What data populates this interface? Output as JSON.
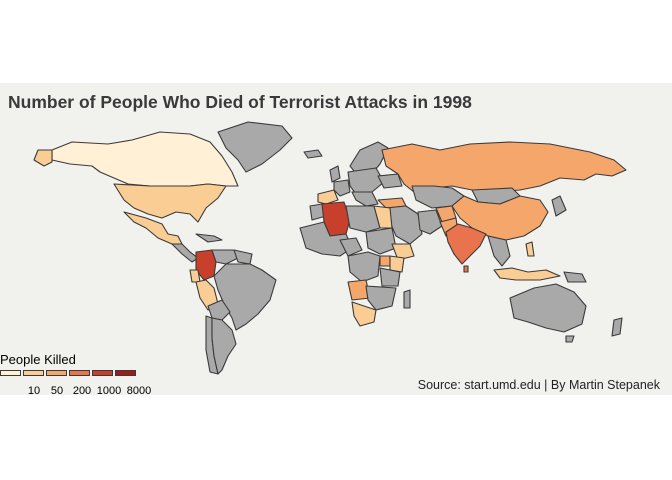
{
  "title": "Number of People Who Died of Terrorist Attacks in 1998",
  "source": "Source: start.umd.edu | By Martin Stepanek",
  "legend": {
    "title": "People Killed",
    "labels": [
      "10",
      "50",
      "200",
      "1000",
      "8000"
    ]
  },
  "colors": {
    "no_data": "#a9a9a9",
    "scale": [
      "#fff0d6",
      "#f9cd94",
      "#f5a76b",
      "#e8734d",
      "#c8402c",
      "#a11a1a"
    ],
    "border": "#3a3a3a",
    "background": "#f1f1ee"
  },
  "chart_data": {
    "type": "choropleth",
    "scale": "log",
    "legend_breaks": [
      10,
      50,
      200,
      1000,
      8000
    ],
    "regions": [
      {
        "name": "Canada",
        "bin": 0
      },
      {
        "name": "United States",
        "bin": 1
      },
      {
        "name": "Mexico",
        "bin": 1
      },
      {
        "name": "Colombia",
        "bin": 4
      },
      {
        "name": "Peru",
        "bin": 1
      },
      {
        "name": "Algeria",
        "bin": 4
      },
      {
        "name": "India",
        "bin": 3
      },
      {
        "name": "Russia",
        "bin": 2
      },
      {
        "name": "China",
        "bin": 2
      },
      {
        "name": "Angola",
        "bin": 2
      },
      {
        "name": "Uganda",
        "bin": 2
      },
      {
        "name": "Kenya",
        "bin": 1
      },
      {
        "name": "South Africa",
        "bin": 1
      },
      {
        "name": "Turkey",
        "bin": 2
      },
      {
        "name": "Pakistan",
        "bin": 2
      },
      {
        "name": "Sri Lanka",
        "bin": 3
      },
      {
        "name": "Indonesia",
        "bin": 1
      },
      {
        "name": "Philippines",
        "bin": 1
      },
      {
        "name": "Spain",
        "bin": 1
      },
      {
        "name": "Egypt",
        "bin": 1
      },
      {
        "name": "Afghanistan",
        "bin": 2
      }
    ]
  }
}
